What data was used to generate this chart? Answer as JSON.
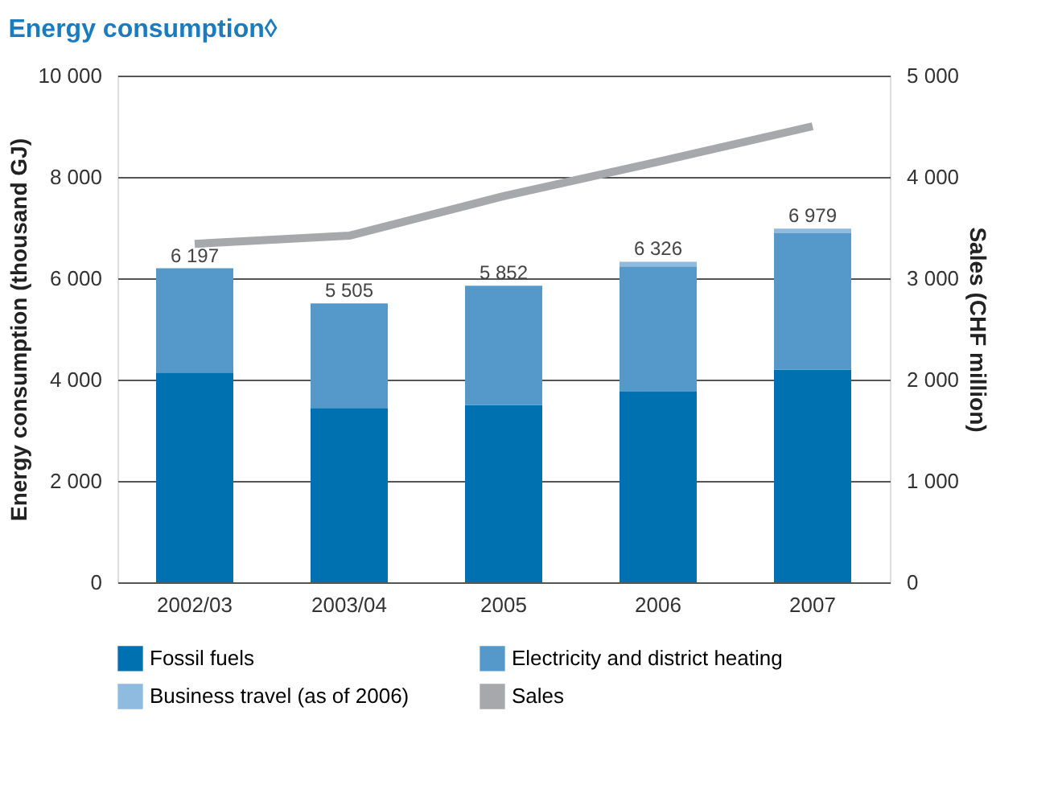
{
  "chart_data": {
    "type": "bar",
    "title": "Energy consumption◊",
    "ylabel": "Energy consumption (thousand GJ)",
    "y2label": "Sales (CHF million)",
    "categories": [
      "2002/03",
      "2003/04",
      "2005",
      "2006",
      "2007"
    ],
    "stacked": true,
    "series": [
      {
        "name": "Fossil fuels",
        "color": "#0071b0",
        "values": [
          4140,
          3440,
          3500,
          3760,
          4200
        ]
      },
      {
        "name": "Electricity and district heating",
        "color": "#5599cb",
        "values": [
          2057,
          2065,
          2352,
          2476,
          2689
        ]
      },
      {
        "name": "Business travel (as of 2006)",
        "color": "#8fbbe0",
        "values": [
          null,
          null,
          null,
          90,
          90
        ]
      },
      {
        "name": "Sales",
        "color": "#a7a8ab",
        "type": "line",
        "axis": "y2",
        "values": [
          3340,
          3420,
          3810,
          4150,
          4500
        ]
      }
    ],
    "totals": [
      "6 197",
      "5 505",
      "5 852",
      "6 326",
      "6 979"
    ],
    "ylim": [
      0,
      10000
    ],
    "yticks": [
      0,
      {
        "value": 2000,
        "label": "2 000"
      },
      {
        "value": 4000,
        "label": "4 000"
      },
      {
        "value": 6000,
        "label": "6 000"
      },
      {
        "value": 8000,
        "label": "8 000"
      },
      {
        "value": 10000,
        "label": "10 000"
      }
    ],
    "y2lim": [
      0,
      5000
    ],
    "y2ticks": [
      0,
      {
        "value": 1000,
        "label": "1 000"
      },
      {
        "value": 2000,
        "label": "2 000"
      },
      {
        "value": 3000,
        "label": "3 000"
      },
      {
        "value": 4000,
        "label": "4 000"
      },
      {
        "value": 5000,
        "label": "5 000"
      }
    ],
    "grid": "y",
    "legend": "bottom"
  }
}
